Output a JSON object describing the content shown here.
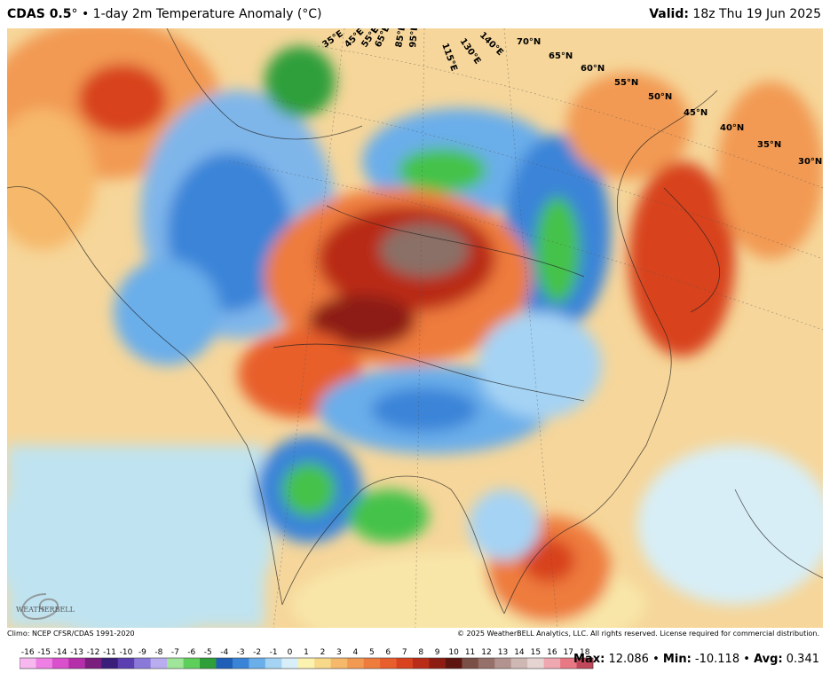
{
  "header": {
    "model": "CDAS 0.5",
    "degree_mark": "°",
    "bullet": "•",
    "product": "1-day 2m Temperature Anomaly (°C)",
    "valid_label": "Valid:",
    "valid_time": "18z Thu 19 Jun 2025"
  },
  "map": {
    "lat_labels": [
      "70°N",
      "65°N",
      "60°N",
      "55°N",
      "50°N",
      "45°N",
      "40°N",
      "35°N",
      "30°N"
    ],
    "lon_labels": [
      "35°E",
      "45°E",
      "55°E",
      "65°E",
      "85°E",
      "95°E",
      "115°E",
      "130°E",
      "140°E"
    ],
    "logo_text": "WEATHERBELL",
    "colors": {
      "ocean_near_normal": "#bfe3f0",
      "warm_light": "#f7d58b",
      "warm_orange": "#f08a3a",
      "warm_red": "#c0301c",
      "warm_dark": "#6e1a10",
      "extreme_brown": "#8a7066",
      "cold_light": "#a9d4ee",
      "cold_blue": "#3a7fd0",
      "cold_green": "#45c24a",
      "cold_purple": "#9a6fd8"
    }
  },
  "footer": {
    "climo": "Climo: NCEP CFSR/CDAS 1991-2020",
    "copyright": "© 2025 WeatherBELL Analytics, LLC. All rights reserved. License required for commercial distribution."
  },
  "colorbar": {
    "ticks": [
      "-16",
      "-15",
      "-14",
      "-13",
      "-12",
      "-11",
      "-10",
      "-9",
      "-8",
      "-7",
      "-6",
      "-5",
      "-4",
      "-3",
      "-2",
      "-1",
      "0",
      "1",
      "2",
      "3",
      "4",
      "5",
      "6",
      "7",
      "8",
      "9",
      "10",
      "11",
      "12",
      "13",
      "14",
      "15",
      "16",
      "17",
      "18"
    ],
    "colors": [
      "#f7b8f0",
      "#ee7fe4",
      "#d94fcc",
      "#b42fa9",
      "#7a1f7d",
      "#3a1f7a",
      "#5b3fb0",
      "#8b79d9",
      "#b9acef",
      "#9fe59a",
      "#5fcf5c",
      "#2f9f3a",
      "#1f5fb8",
      "#3a84d8",
      "#6aaeea",
      "#a5d3f4",
      "#d8eef9",
      "#fbf2b0",
      "#f8d98a",
      "#f6b86a",
      "#f29a52",
      "#ee7c3c",
      "#e85e2c",
      "#d8421f",
      "#b92c18",
      "#8d1d12",
      "#5e1510",
      "#7a4f46",
      "#96706a",
      "#b3938f",
      "#cfb7b4",
      "#e6d4d2",
      "#f0a8b0",
      "#e87884",
      "#c0485a"
    ]
  },
  "stats": {
    "max_label": "Max:",
    "max_value": "12.086",
    "min_label": "Min:",
    "min_value": "-10.118",
    "avg_label": "Avg:",
    "avg_value": "0.341",
    "separator": "•"
  }
}
